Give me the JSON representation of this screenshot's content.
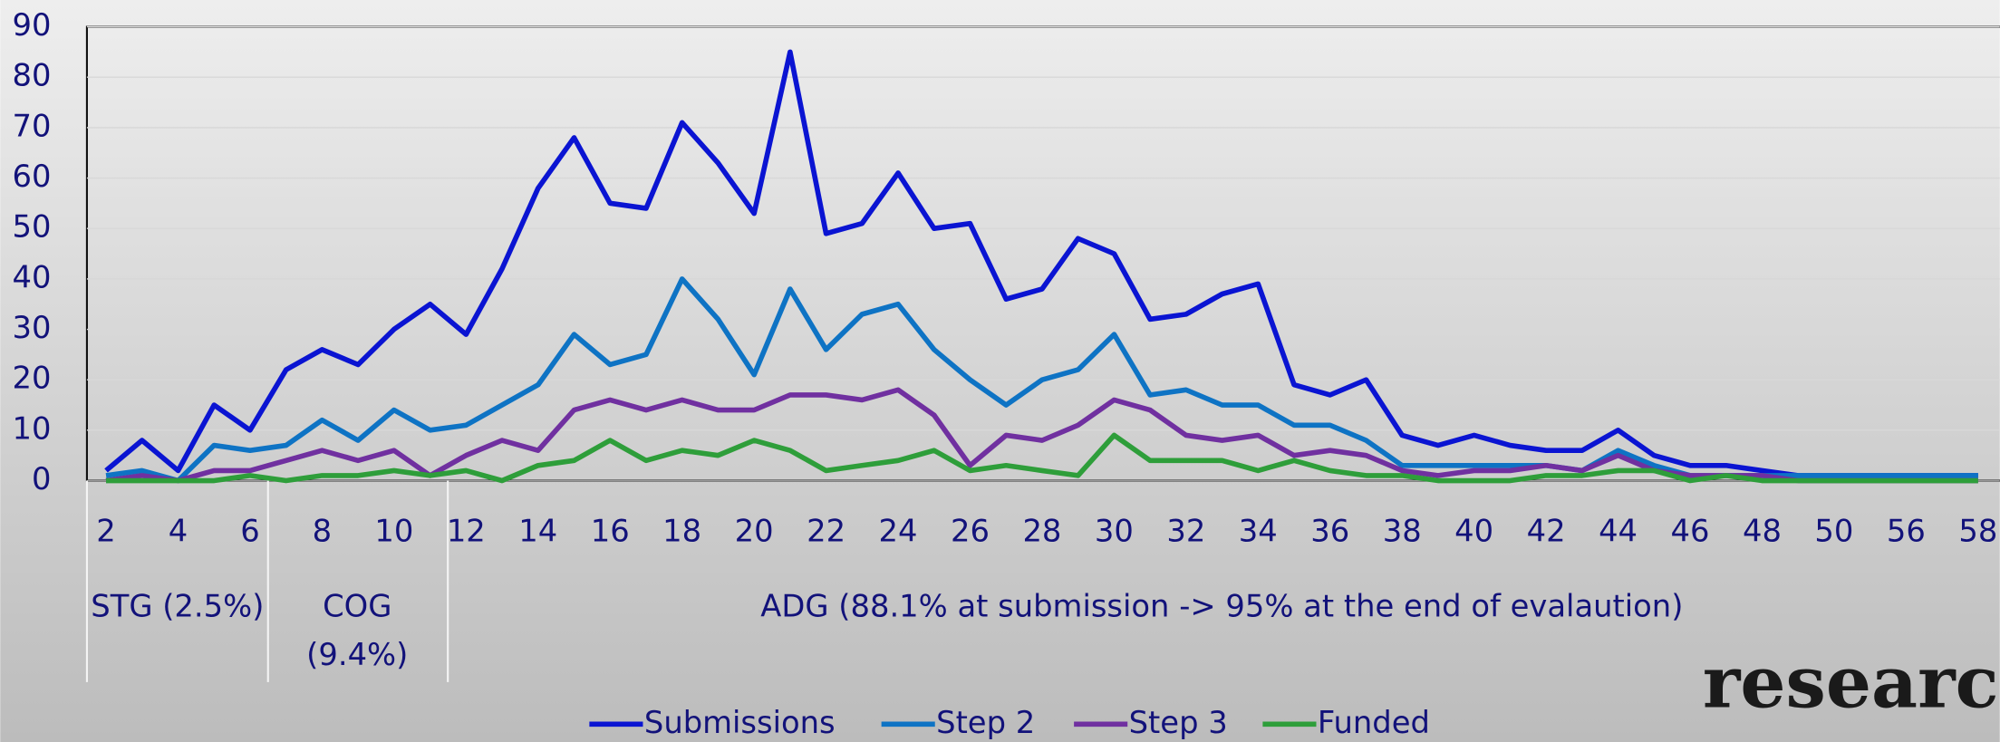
{
  "chart_data": {
    "type": "line",
    "categories": [
      2,
      null,
      4,
      null,
      6,
      null,
      8,
      null,
      10,
      null,
      12,
      null,
      14,
      null,
      16,
      null,
      18,
      null,
      20,
      null,
      22,
      null,
      24,
      null,
      26,
      null,
      28,
      null,
      30,
      null,
      32,
      null,
      34,
      null,
      36,
      null,
      38,
      null,
      40,
      null,
      42,
      null,
      44,
      null,
      46,
      null,
      48,
      null,
      50,
      null,
      56,
      null,
      58
    ],
    "series": [
      {
        "name": "Submissions",
        "color": "#0a14d2",
        "values": [
          2,
          8,
          2,
          15,
          10,
          22,
          26,
          23,
          30,
          35,
          29,
          42,
          58,
          68,
          55,
          54,
          71,
          63,
          53,
          85,
          49,
          51,
          61,
          50,
          51,
          36,
          38,
          48,
          45,
          32,
          33,
          37,
          39,
          19,
          17,
          20,
          9,
          7,
          9,
          7,
          6,
          6,
          10,
          5,
          3,
          3,
          2,
          1,
          1,
          1,
          1,
          1,
          1
        ]
      },
      {
        "name": "Step 2",
        "color": "#0e73c4",
        "values": [
          1,
          2,
          0,
          7,
          6,
          7,
          12,
          8,
          14,
          10,
          11,
          15,
          19,
          29,
          23,
          25,
          40,
          32,
          21,
          38,
          26,
          33,
          35,
          26,
          20,
          15,
          20,
          22,
          29,
          17,
          18,
          15,
          15,
          11,
          11,
          8,
          3,
          3,
          3,
          3,
          3,
          2,
          6,
          3,
          1,
          1,
          1,
          1,
          1,
          1,
          1,
          1,
          1
        ]
      },
      {
        "name": "Step 3",
        "color": "#7030a0",
        "values": [
          0,
          1,
          0,
          2,
          2,
          4,
          6,
          4,
          6,
          1,
          5,
          8,
          6,
          14,
          16,
          14,
          16,
          14,
          14,
          17,
          17,
          16,
          18,
          13,
          3,
          9,
          8,
          11,
          16,
          14,
          9,
          8,
          9,
          5,
          6,
          5,
          2,
          1,
          2,
          2,
          3,
          2,
          5,
          2,
          1,
          1,
          1,
          0,
          0,
          0,
          0,
          0,
          0
        ]
      },
      {
        "name": "Funded",
        "color": "#2e9e3a",
        "values": [
          0,
          0,
          0,
          0,
          1,
          0,
          1,
          1,
          2,
          1,
          2,
          0,
          3,
          4,
          8,
          4,
          6,
          5,
          8,
          6,
          2,
          3,
          4,
          6,
          2,
          3,
          2,
          1,
          9,
          4,
          4,
          4,
          2,
          4,
          2,
          1,
          1,
          0,
          0,
          0,
          1,
          1,
          2,
          2,
          0,
          1,
          0,
          0,
          0,
          0,
          0,
          0,
          0
        ]
      }
    ],
    "ylim": [
      0,
      90
    ],
    "yticks": [
      0,
      10,
      20,
      30,
      40,
      50,
      60,
      70,
      80,
      90
    ],
    "grid": true,
    "annotations": [
      [
        "STG (2.5%)"
      ],
      [
        "COG",
        "(9.4%)"
      ],
      [
        "ADG (88.1% at submission -> 95% at the end of evalaution)"
      ]
    ],
    "legend": "bottom",
    "logo": "research"
  }
}
